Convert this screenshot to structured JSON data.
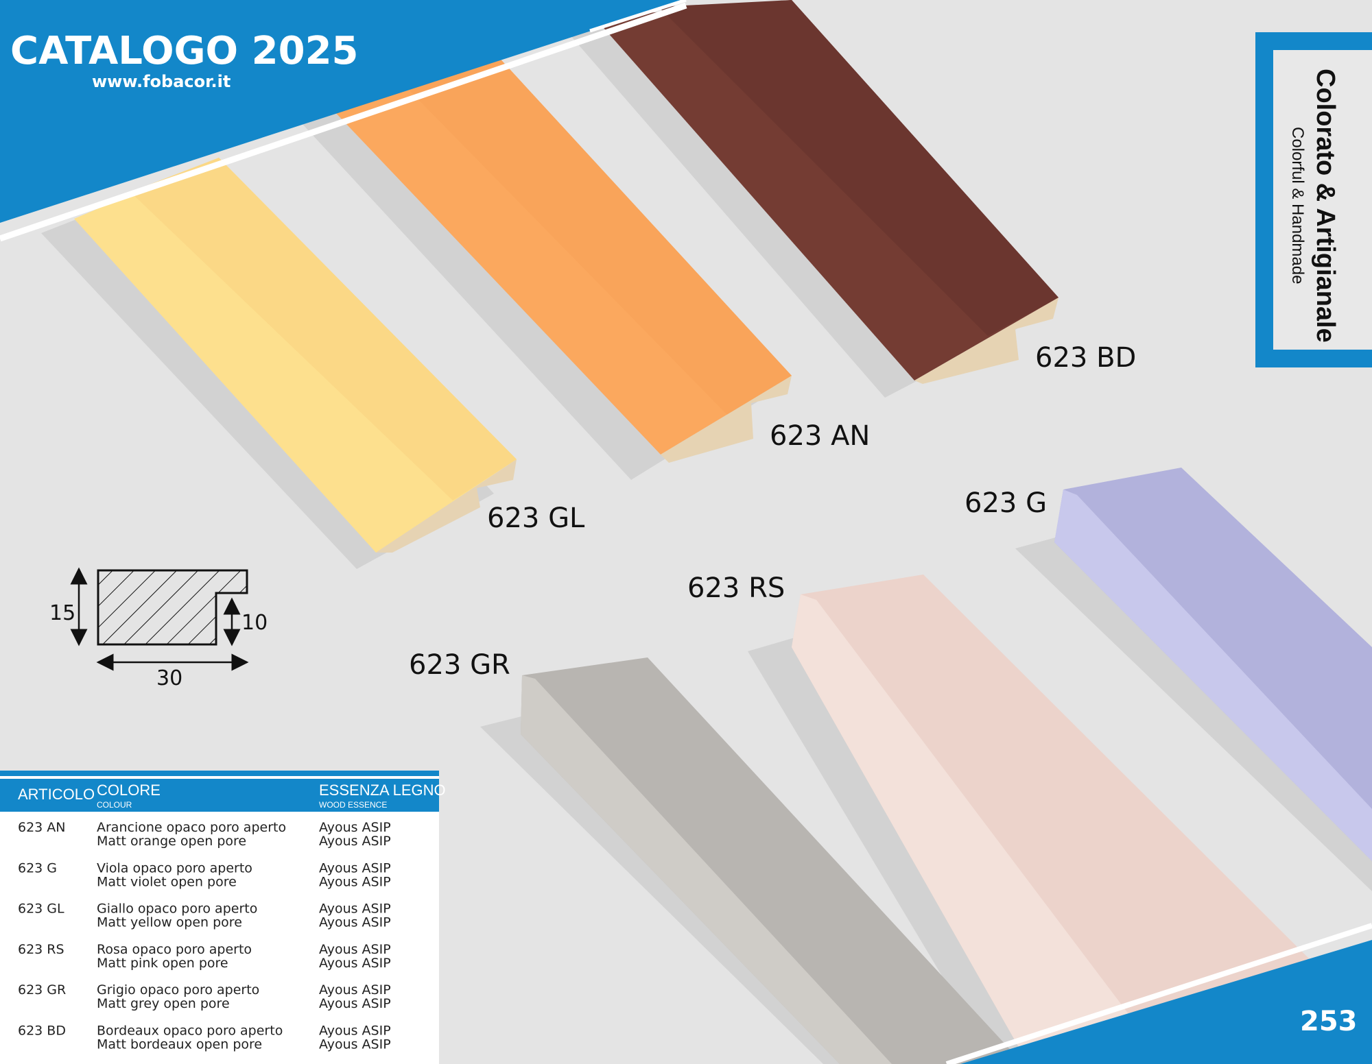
{
  "header": {
    "title": "CATALOGO 2025",
    "website": "www.fobacor.it"
  },
  "side_box": {
    "title": "Colorato & Artigianale",
    "subtitle": "Colorful & Handmade"
  },
  "page_number": "253",
  "frame_labels": [
    "623 BD",
    "623 AN",
    "623 GL",
    "623 G",
    "623 RS",
    "623 GR"
  ],
  "profile": {
    "height": "15",
    "rebate": "10",
    "width": "30"
  },
  "table": {
    "headers": [
      {
        "title": "ARTICOLO"
      },
      {
        "title": "COLORE",
        "subtitle": "COLOUR"
      },
      {
        "title": "ESSENZA LEGNO",
        "subtitle": "WOOD ESSENCE"
      }
    ],
    "rows": [
      [
        "623 AN",
        "Arancione opaco poro aperto",
        "Matt orange open pore",
        "Ayous ASIP",
        "Ayous ASIP"
      ],
      [
        "623 G",
        "Viola opaco poro aperto",
        "Matt violet open pore",
        "Ayous ASIP",
        "Ayous ASIP"
      ],
      [
        "623 GL",
        "Giallo opaco poro aperto",
        "Matt yellow open pore",
        "Ayous ASIP",
        "Ayous ASIP"
      ],
      [
        "623 RS",
        "Rosa opaco poro aperto",
        "Matt pink open pore",
        "Ayous ASIP",
        "Ayous ASIP"
      ],
      [
        "623 GR",
        "Grigio opaco poro aperto",
        "Matt grey open pore",
        "Ayous ASIP",
        "Ayous ASIP"
      ],
      [
        "623 BD",
        "Bordeaux opaco poro aperto",
        "Matt bordeaux open pore",
        "Ayous ASIP",
        "Ayous ASIP"
      ]
    ]
  }
}
